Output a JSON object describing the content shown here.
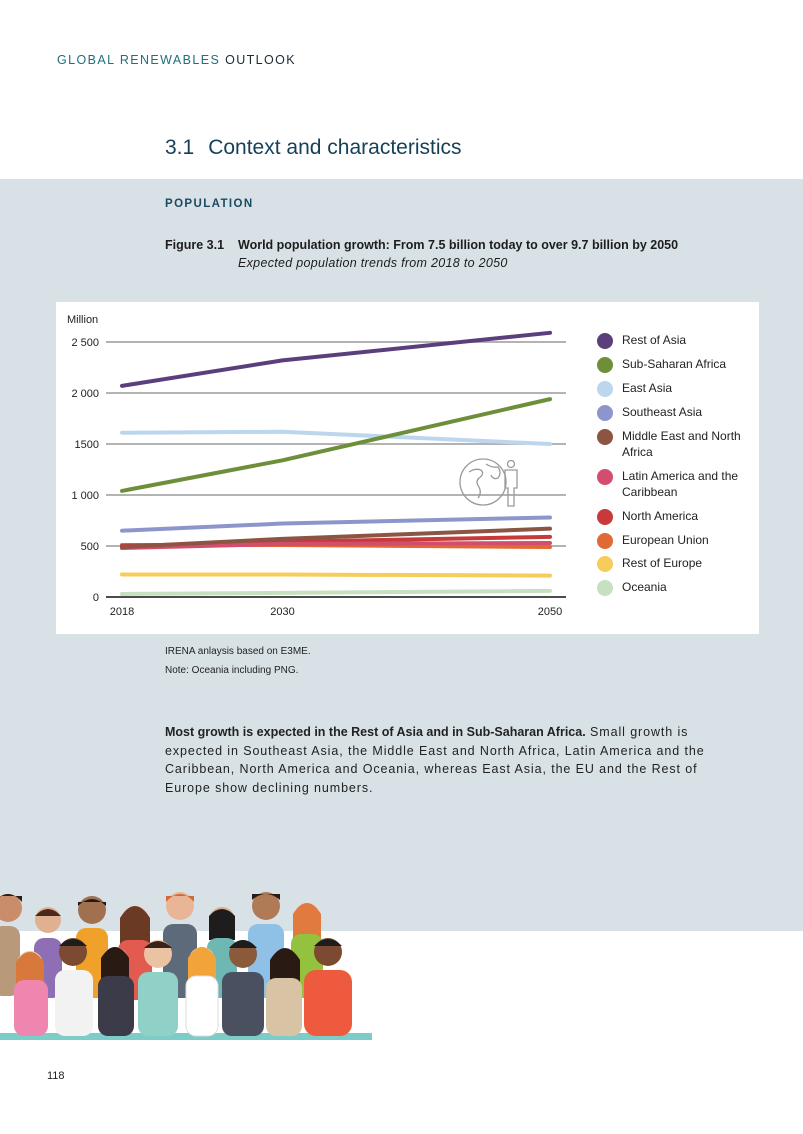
{
  "header": {
    "part1": "GLOBAL RENEWABLES",
    "part2": "OUTLOOK"
  },
  "section": {
    "number": "3.1",
    "title": "Context and characteristics"
  },
  "subhead": "POPULATION",
  "figure": {
    "label": "Figure 3.1",
    "title": "World population growth: From 7.5 billion today to over 9.7 billion by 2050",
    "subtitle": "Expected population trends from 2018 to 2050"
  },
  "chart_data": {
    "type": "line",
    "ylabel": "Million",
    "ylim": [
      0,
      2500
    ],
    "yticks": [
      0,
      500,
      1000,
      1500,
      2000,
      2500
    ],
    "ytick_labels": [
      "0",
      "500",
      "1 000",
      "1500",
      "2 000",
      "2 500"
    ],
    "x": [
      2018,
      2030,
      2050
    ],
    "xtick_labels": [
      "2018",
      "2030",
      "2050"
    ],
    "grid": true,
    "legend_position": "right",
    "series": [
      {
        "name": "Rest of Asia",
        "color": "#5b3f7c",
        "values": [
          2070,
          2320,
          2590
        ]
      },
      {
        "name": "Sub-Saharan Africa",
        "color": "#6e8f3a",
        "values": [
          1040,
          1340,
          1940
        ]
      },
      {
        "name": "East Asia",
        "color": "#bcd6ee",
        "values": [
          1610,
          1620,
          1500
        ]
      },
      {
        "name": "Southeast Asia",
        "color": "#8d96cc",
        "values": [
          650,
          720,
          780
        ]
      },
      {
        "name": "Middle East and North Africa",
        "color": "#8c5443",
        "values": [
          490,
          570,
          670
        ]
      },
      {
        "name": "Latin America and the Caribbean",
        "color": "#d24d6e",
        "values": [
          480,
          520,
          530
        ]
      },
      {
        "name": "North America",
        "color": "#c83a3a",
        "values": [
          500,
          540,
          590
        ]
      },
      {
        "name": "European Union",
        "color": "#e06a34",
        "values": [
          510,
          510,
          490
        ]
      },
      {
        "name": "Rest of Europe",
        "color": "#f6cd5a",
        "values": [
          220,
          220,
          210
        ]
      },
      {
        "name": "Oceania",
        "color": "#c6e0c0",
        "values": [
          30,
          40,
          60
        ]
      }
    ]
  },
  "notes": [
    "IRENA anlaysis based on E3ME.",
    "Note: Oceania including PNG."
  ],
  "body": {
    "bold": "Most growth is expected in the Rest of Asia and in Sub-Saharan Africa.",
    "text": " Small growth is expected in Southeast Asia, the Middle East and North Africa, Latin America and the Caribbean, North America and Oceania, whereas East Asia, the EU and the Rest of Europe show declining numbers."
  },
  "page_number": "118"
}
